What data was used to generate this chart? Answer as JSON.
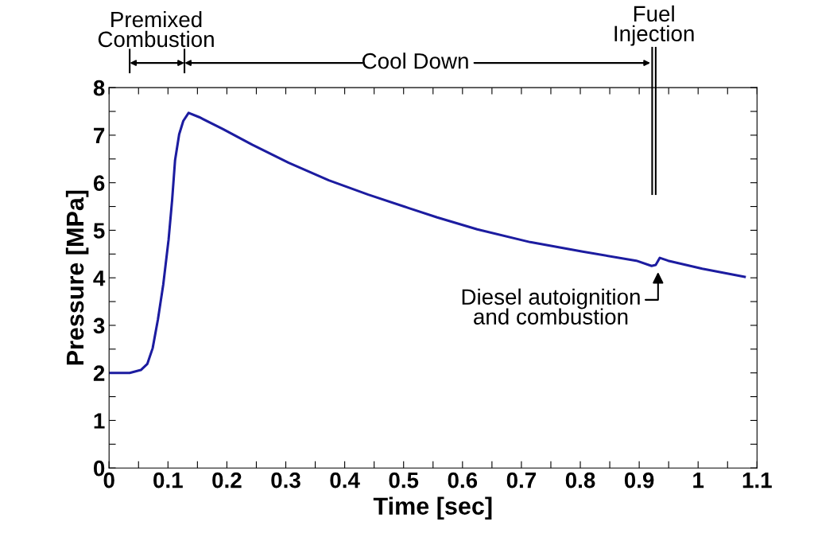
{
  "chart_data": {
    "type": "line",
    "xlabel": "Time [sec]",
    "ylabel": "Pressure [MPa]",
    "x": [
      0,
      0.035,
      0.054,
      0.065,
      0.074,
      0.083,
      0.092,
      0.101,
      0.107,
      0.112,
      0.119,
      0.126,
      0.135,
      0.153,
      0.193,
      0.243,
      0.305,
      0.373,
      0.44,
      0.508,
      0.557,
      0.625,
      0.715,
      0.804,
      0.895,
      0.921,
      0.928,
      0.935,
      0.949,
      1.007,
      1.079
    ],
    "series": [
      {
        "color": "#1c1ca0",
        "values": [
          2.0,
          2.0,
          2.06,
          2.19,
          2.52,
          3.13,
          3.86,
          4.8,
          5.63,
          6.47,
          7.02,
          7.3,
          7.47,
          7.38,
          7.13,
          6.8,
          6.42,
          6.05,
          5.75,
          5.47,
          5.27,
          5.02,
          4.75,
          4.55,
          4.36,
          4.25,
          4.27,
          4.42,
          4.36,
          4.19,
          4.02
        ]
      }
    ],
    "xlim": [
      0,
      1.1
    ],
    "ylim": [
      0,
      8
    ],
    "xticks": [
      0,
      {
        "value": 0.05,
        "label": null
      },
      0.1,
      {
        "value": 0.15,
        "label": null
      },
      0.2,
      {
        "value": 0.25,
        "label": null
      },
      0.3,
      {
        "value": 0.35,
        "label": null
      },
      0.4,
      {
        "value": 0.45,
        "label": null
      },
      0.5,
      {
        "value": 0.55,
        "label": null
      },
      0.6,
      {
        "value": 0.65,
        "label": null
      },
      0.7,
      {
        "value": 0.75,
        "label": null
      },
      0.8,
      {
        "value": 0.85,
        "label": null
      },
      0.9,
      {
        "value": 0.95,
        "label": null
      },
      1,
      {
        "value": 1.05,
        "label": null
      },
      1.1
    ],
    "yticks": [
      0,
      {
        "value": 0.5,
        "label": null
      },
      1,
      {
        "value": 1.5,
        "label": null
      },
      2,
      {
        "value": 2.5,
        "label": null
      },
      3,
      {
        "value": 3.5,
        "label": null
      },
      4,
      {
        "value": 4.5,
        "label": null
      },
      5,
      {
        "value": 5.5,
        "label": null
      },
      6,
      {
        "value": 6.5,
        "label": null
      },
      7,
      {
        "value": 7.5,
        "label": null
      },
      8
    ],
    "grid": false,
    "legend": false,
    "marker": "none",
    "line_style": "solid",
    "ref_lines": [
      {
        "axis": "x",
        "value": 0.925,
        "label": "Fuel\nInjection",
        "color": "#000000"
      }
    ],
    "annotations": [
      "Premixed\nCombustion",
      "Cool Down",
      {
        "text": "Diesel autoignition\nand combustion",
        "x": 0.932,
        "y": 4.27
      }
    ]
  }
}
